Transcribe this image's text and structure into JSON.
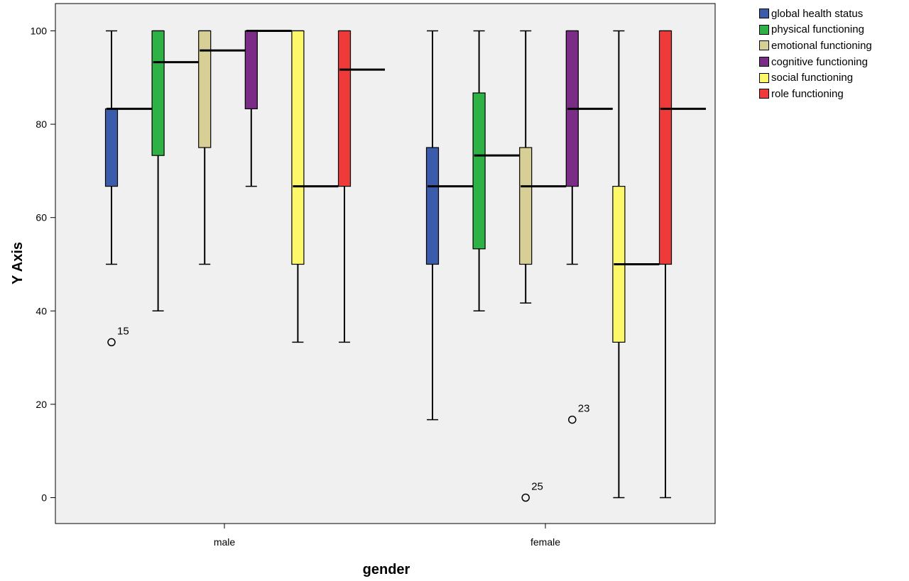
{
  "chart_data": {
    "type": "boxplot",
    "xlabel": "gender",
    "ylabel": "Y Axis",
    "ylim": [
      -5.5,
      105.5
    ],
    "yticks": [
      0,
      20,
      40,
      60,
      80,
      100
    ],
    "categories": [
      "male",
      "female"
    ],
    "grid": false,
    "legend_position": "right",
    "background": "#f0f0f0",
    "series": [
      {
        "name": "global health status",
        "color": "#3b5bab",
        "boxes": [
          {
            "min": 50,
            "q1": 66.7,
            "median": 83.3,
            "q3": 83.3,
            "max": 100,
            "outliers": [
              {
                "value": 33.3,
                "label": "15"
              }
            ]
          },
          {
            "min": 16.7,
            "q1": 50,
            "median": 66.7,
            "q3": 75,
            "max": 100,
            "outliers": []
          }
        ]
      },
      {
        "name": "physical functioning",
        "color": "#2eb245",
        "boxes": [
          {
            "min": 40,
            "q1": 73.3,
            "median": 93.3,
            "q3": 100,
            "max": 100,
            "outliers": []
          },
          {
            "min": 40,
            "q1": 53.3,
            "median": 73.3,
            "q3": 86.7,
            "max": 100,
            "outliers": []
          }
        ]
      },
      {
        "name": "emotional functioning",
        "color": "#d8cf96",
        "boxes": [
          {
            "min": 50,
            "q1": 75,
            "median": 95.8,
            "q3": 100,
            "max": 100,
            "outliers": []
          },
          {
            "min": 41.7,
            "q1": 50,
            "median": 66.7,
            "q3": 75,
            "max": 100,
            "outliers": [
              {
                "value": 0,
                "label": "25"
              }
            ]
          }
        ]
      },
      {
        "name": "cognitive functioning",
        "color": "#7a2c86",
        "boxes": [
          {
            "min": 66.7,
            "q1": 83.3,
            "median": 100,
            "q3": 100,
            "max": 100,
            "outliers": []
          },
          {
            "min": 50,
            "q1": 66.7,
            "median": 83.3,
            "q3": 100,
            "max": 100,
            "outliers": [
              {
                "value": 16.7,
                "label": "23"
              }
            ]
          }
        ]
      },
      {
        "name": "social functioning",
        "color": "#fdf86a",
        "boxes": [
          {
            "min": 33.3,
            "q1": 50,
            "median": 66.7,
            "q3": 100,
            "max": 100,
            "outliers": []
          },
          {
            "min": 0,
            "q1": 33.3,
            "median": 50,
            "q3": 66.7,
            "max": 100,
            "outliers": []
          }
        ]
      },
      {
        "name": "role functioning",
        "color": "#ee3a39",
        "boxes": [
          {
            "min": 33.3,
            "q1": 66.7,
            "median": 91.7,
            "q3": 100,
            "max": 100,
            "outliers": []
          },
          {
            "min": 0,
            "q1": 50,
            "median": 83.3,
            "q3": 100,
            "max": 100,
            "outliers": []
          }
        ]
      }
    ]
  }
}
